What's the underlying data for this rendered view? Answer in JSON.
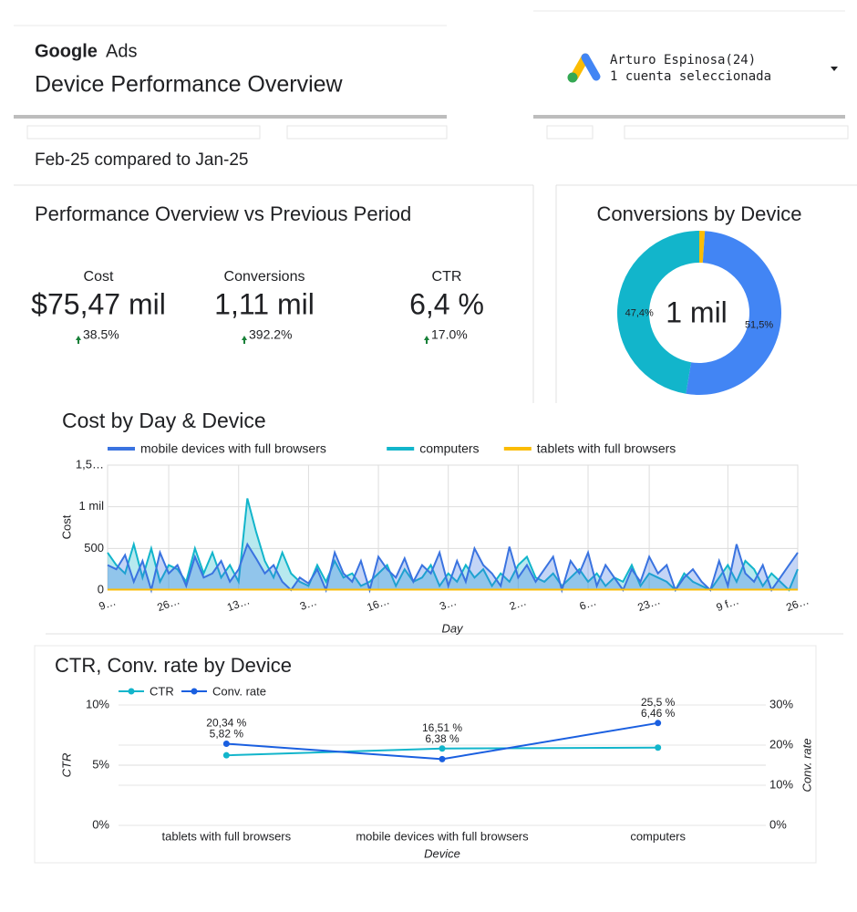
{
  "header": {
    "logo": "Google",
    "product": "Ads",
    "title": "Device Performance Overview",
    "account_name": "Arturo Espinosa(24)",
    "account_note": "1 cuenta seleccionada"
  },
  "period": "Feb-25 compared to Jan-25",
  "scorecard": {
    "title": "Performance Overview vs Previous Period",
    "items": [
      {
        "label": "Cost",
        "value": "$75,47 mil",
        "change": "38.5%"
      },
      {
        "label": "Conversions",
        "value": "1,11 mil",
        "change": "392.2%"
      },
      {
        "label": "CTR",
        "value": "6,4 %",
        "change": "17.0%"
      }
    ]
  },
  "chart_data": [
    {
      "type": "donut",
      "title": "Conversions by Device",
      "center_label": "1 mil",
      "values": [
        1.1,
        51.5,
        47.4
      ],
      "value_labels": [
        null,
        "51,5%",
        "47,4%"
      ],
      "colors": [
        "#fbbc04",
        "#4285f4",
        "#12b5cb"
      ]
    },
    {
      "type": "area",
      "title": "Cost by Day & Device",
      "x_label": "Day",
      "y_label": "Cost",
      "legend": "top",
      "grid": true,
      "categories": [
        "9…",
        null,
        null,
        null,
        null,
        null,
        null,
        "26…",
        null,
        null,
        null,
        null,
        null,
        null,
        null,
        "13…",
        null,
        null,
        null,
        null,
        null,
        null,
        null,
        "3…",
        null,
        null,
        null,
        null,
        null,
        null,
        null,
        "16…",
        null,
        null,
        null,
        null,
        null,
        null,
        null,
        "3…",
        null,
        null,
        null,
        null,
        null,
        null,
        null,
        "2…",
        null,
        null,
        null,
        null,
        null,
        null,
        null,
        "6…",
        null,
        null,
        null,
        null,
        null,
        null,
        "23…",
        null,
        null,
        null,
        null,
        null,
        null,
        null,
        null,
        "9 f…",
        null,
        null,
        null,
        null,
        null,
        null,
        null,
        "26…"
      ],
      "ylim": [
        0,
        1500
      ],
      "yticks": [
        0,
        500,
        {
          "value": 1000,
          "label": "1 mil"
        },
        {
          "value": 1500,
          "label": "1,5…"
        }
      ],
      "series": [
        {
          "name": "mobile devices with full browsers",
          "color": "#3a73e0",
          "values": [
            300,
            250,
            420,
            100,
            350,
            0,
            450,
            200,
            300,
            50,
            400,
            150,
            200,
            350,
            100,
            250,
            550,
            380,
            200,
            300,
            100,
            0,
            150,
            80,
            250,
            0,
            450,
            200,
            100,
            350,
            0,
            400,
            250,
            150,
            380,
            100,
            300,
            200,
            450,
            50,
            350,
            100,
            500,
            300,
            200,
            50,
            520,
            150,
            300,
            100,
            250,
            400,
            0,
            350,
            200,
            450,
            50,
            300,
            150,
            0,
            250,
            100,
            400,
            200,
            300,
            0,
            150,
            250,
            100,
            0,
            350,
            50,
            550,
            200,
            100,
            300,
            0,
            150,
            300,
            450
          ]
        },
        {
          "name": "computers",
          "color": "#12b5cb",
          "values": [
            450,
            300,
            200,
            550,
            150,
            500,
            100,
            300,
            250,
            100,
            500,
            200,
            450,
            150,
            300,
            100,
            1100,
            700,
            350,
            150,
            450,
            200,
            100,
            50,
            300,
            100,
            350,
            150,
            200,
            50,
            100,
            200,
            300,
            50,
            250,
            100,
            150,
            300,
            50,
            200,
            100,
            300,
            150,
            250,
            50,
            200,
            100,
            300,
            400,
            150,
            100,
            200,
            50,
            150,
            250,
            100,
            200,
            50,
            150,
            100,
            300,
            50,
            200,
            150,
            100,
            0,
            200,
            100,
            50,
            0,
            150,
            300,
            100,
            350,
            250,
            50,
            200,
            100,
            0,
            250
          ]
        },
        {
          "name": "tablets with full browsers",
          "color": "#fbbc04",
          "values": [
            5,
            5,
            5,
            5,
            5,
            5,
            5,
            5,
            5,
            5,
            5,
            5,
            5,
            5,
            5,
            5,
            5,
            5,
            5,
            5,
            5,
            5,
            5,
            5,
            5,
            5,
            5,
            5,
            5,
            5,
            5,
            5,
            5,
            5,
            5,
            5,
            5,
            5,
            5,
            5,
            5,
            5,
            5,
            5,
            5,
            5,
            5,
            5,
            5,
            5,
            5,
            5,
            5,
            5,
            5,
            5,
            5,
            5,
            5,
            5,
            5,
            5,
            5,
            5,
            5,
            5,
            5,
            5,
            5,
            5,
            5,
            5,
            5,
            5,
            5,
            5,
            5,
            5,
            5,
            5
          ]
        }
      ]
    },
    {
      "type": "line",
      "title": "CTR, Conv. rate by Device",
      "x_label": "Device",
      "y_label": "CTR",
      "y2_label": "Conv. rate",
      "legend": "top-left",
      "grid": true,
      "categories": [
        "tablets with full browsers",
        "mobile devices with full browsers",
        "computers"
      ],
      "ylim": [
        0,
        10
      ],
      "yticks": [
        {
          "value": 0,
          "label": "0%"
        },
        {
          "value": 5,
          "label": "5%"
        },
        {
          "value": 10,
          "label": "10%"
        }
      ],
      "y2lim": [
        0,
        30
      ],
      "y2ticks": [
        {
          "value": 0,
          "label": "0%"
        },
        {
          "value": 10,
          "label": "10%"
        },
        {
          "value": 20,
          "label": "20%"
        },
        {
          "value": 30,
          "label": "30%"
        }
      ],
      "series": [
        {
          "name": "CTR",
          "color": "#12b5cb",
          "values": [
            5.82,
            6.38,
            6.46
          ],
          "value_labels": [
            "5,82 %",
            "6,38 %",
            "6,46 %"
          ]
        },
        {
          "name": "Conv. rate",
          "color": "#1a5fe0",
          "axis": "y2",
          "values": [
            20.34,
            16.51,
            25.5
          ],
          "value_labels": [
            "20,34 %",
            "16,51 %",
            "25,5 %"
          ]
        }
      ]
    }
  ]
}
